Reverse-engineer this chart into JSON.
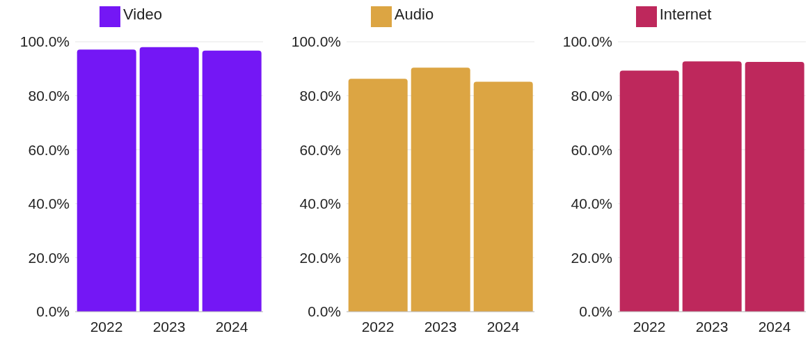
{
  "chart_data": [
    {
      "type": "bar",
      "categories": [
        "2022",
        "2023",
        "2024"
      ],
      "series": [
        {
          "name": "Video",
          "color": "#7417f5",
          "values": [
            97.1,
            98.0,
            96.7
          ]
        }
      ],
      "ylim": [
        0,
        100
      ],
      "yticks": [
        {
          "value": 0,
          "label": "0.0%"
        },
        {
          "value": 20,
          "label": "20.0%"
        },
        {
          "value": 40,
          "label": "40.0%"
        },
        {
          "value": 60,
          "label": "60.0%"
        },
        {
          "value": 80,
          "label": "80.0%"
        },
        {
          "value": 100,
          "label": "100.0%"
        }
      ],
      "grid": "y",
      "legend": "top"
    },
    {
      "type": "bar",
      "categories": [
        "2022",
        "2023",
        "2024"
      ],
      "series": [
        {
          "name": "Audio",
          "color": "#dca543",
          "values": [
            86.3,
            90.4,
            85.2
          ]
        }
      ],
      "ylim": [
        0,
        100
      ],
      "yticks": [
        {
          "value": 0,
          "label": "0.0%"
        },
        {
          "value": 20,
          "label": "20.0%"
        },
        {
          "value": 40,
          "label": "40.0%"
        },
        {
          "value": 60,
          "label": "60.0%"
        },
        {
          "value": 80,
          "label": "80.0%"
        },
        {
          "value": 100,
          "label": "100.0%"
        }
      ],
      "grid": "y",
      "legend": "top"
    },
    {
      "type": "bar",
      "categories": [
        "2022",
        "2023",
        "2024"
      ],
      "series": [
        {
          "name": "Internet",
          "color": "#be285c",
          "values": [
            89.3,
            92.7,
            92.5
          ]
        }
      ],
      "ylim": [
        0,
        100
      ],
      "yticks": [
        {
          "value": 0,
          "label": "0.0%"
        },
        {
          "value": 20,
          "label": "20.0%"
        },
        {
          "value": 40,
          "label": "40.0%"
        },
        {
          "value": 60,
          "label": "60.0%"
        },
        {
          "value": 80,
          "label": "80.0%"
        },
        {
          "value": 100,
          "label": "100.0%"
        }
      ],
      "grid": "y",
      "legend": "top"
    }
  ]
}
